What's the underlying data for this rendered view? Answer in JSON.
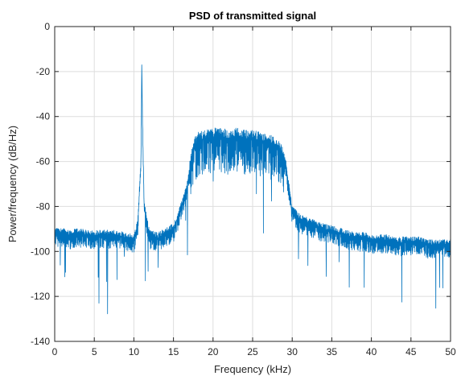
{
  "chart_data": {
    "type": "line",
    "title": "PSD of transmitted signal",
    "xlabel": "Frequency (kHz)",
    "ylabel": "Power/frequency (dB/Hz)",
    "xlim": [
      0,
      50
    ],
    "ylim": [
      -140,
      0
    ],
    "xticks": [
      0,
      5,
      10,
      15,
      20,
      25,
      30,
      35,
      40,
      45,
      50
    ],
    "yticks": [
      0,
      -20,
      -40,
      -60,
      -80,
      -100,
      -120,
      -140
    ],
    "grid": true,
    "line_color": "#0072BD",
    "series": [
      {
        "x": [
          0,
          1,
          2,
          3,
          4,
          5,
          6,
          7,
          8,
          9,
          10,
          10.5,
          10.9,
          11.0,
          11.1,
          11.3,
          11.6,
          12,
          13,
          14,
          15,
          15.5,
          15.8,
          16,
          16.4,
          16.8,
          17.2,
          17.6,
          18,
          19,
          20,
          21,
          22,
          23,
          24,
          25,
          26,
          27,
          28,
          28.6,
          29.2,
          29.6,
          30,
          30.5,
          31,
          32,
          33,
          34,
          35,
          36,
          37,
          38,
          39,
          40,
          41,
          42,
          43,
          44,
          45,
          46,
          47,
          48,
          49,
          50
        ],
        "y": [
          -92,
          -92,
          -93,
          -92,
          -93,
          -93,
          -93,
          -93,
          -93,
          -94,
          -95,
          -88,
          -60,
          -17,
          -45,
          -80,
          -86,
          -93,
          -94,
          -92,
          -90,
          -86,
          -82,
          -80,
          -76,
          -70,
          -60,
          -54,
          -51,
          -50,
          -49,
          -49,
          -50,
          -49,
          -50,
          -50,
          -51,
          -52,
          -53,
          -56,
          -62,
          -72,
          -82,
          -84,
          -86,
          -87,
          -89,
          -90,
          -91,
          -92,
          -93,
          -94,
          -94,
          -95,
          -95,
          -95,
          -96,
          -96,
          -96,
          -96,
          -97,
          -97,
          -97,
          -97
        ]
      }
    ]
  }
}
